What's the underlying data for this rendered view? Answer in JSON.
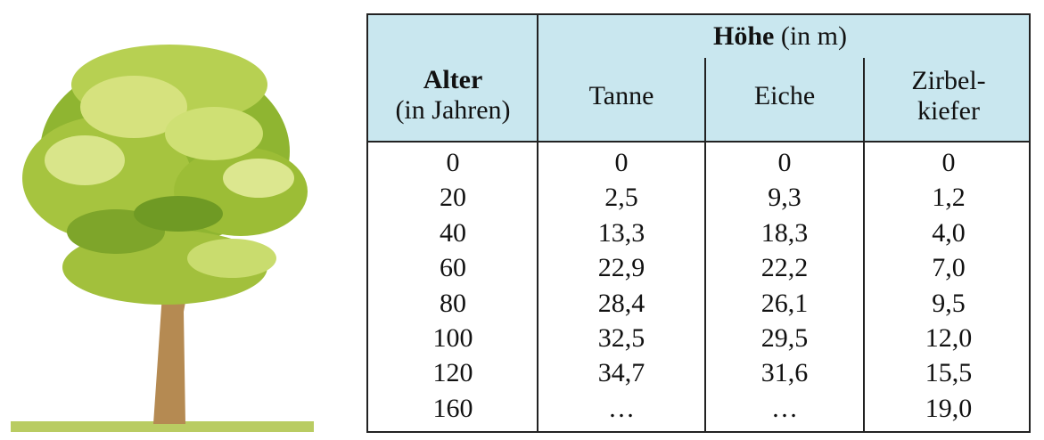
{
  "table": {
    "header": {
      "age": {
        "label": "Alter",
        "sublabel": "(in Jahren)"
      },
      "height": {
        "label": "Höhe",
        "sublabel": "(in m)"
      },
      "columns": [
        [
          "Tanne"
        ],
        [
          "Eiche"
        ],
        [
          "Zirbel-",
          "kiefer"
        ]
      ]
    },
    "rows": [
      [
        "0",
        "0",
        "0",
        "0"
      ],
      [
        "20",
        "2,5",
        "9,3",
        "1,2"
      ],
      [
        "40",
        "13,3",
        "18,3",
        "4,0"
      ],
      [
        "60",
        "22,9",
        "22,2",
        "7,0"
      ],
      [
        "80",
        "28,4",
        "26,1",
        "9,5"
      ],
      [
        "100",
        "32,5",
        "29,5",
        "12,0"
      ],
      [
        "120",
        "34,7",
        "31,6",
        "15,5"
      ],
      [
        "160",
        "…",
        "…",
        "19,0"
      ]
    ]
  }
}
